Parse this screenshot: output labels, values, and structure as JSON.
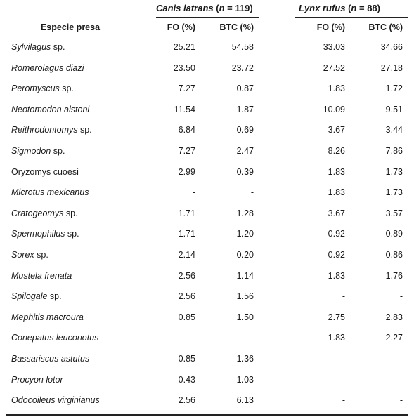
{
  "groups": {
    "canis": {
      "species": "Canis latrans",
      "n_open": " (",
      "n_var": "n",
      "n_eq": " = 119)"
    },
    "lynx": {
      "species": "Lynx rufus",
      "n_open": " (",
      "n_var": "n",
      "n_eq": " = 88)"
    }
  },
  "columns": {
    "species": "Especie presa",
    "canis_fo": "FO (%)",
    "canis_btc": "BTC (%)",
    "lynx_fo": "FO (%)",
    "lynx_btc": "BTC (%)"
  },
  "rows": [
    {
      "name": "Sylvilagus",
      "suffix": " sp.",
      "italic": true,
      "cfo": "25.21",
      "cbtc": "54.58",
      "lfo": "33.03",
      "lbtc": "34.66"
    },
    {
      "name": "Romerolagus diazi",
      "suffix": "",
      "italic": true,
      "cfo": "23.50",
      "cbtc": "23.72",
      "lfo": "27.52",
      "lbtc": "27.18"
    },
    {
      "name": "Peromyscus",
      "suffix": " sp.",
      "italic": true,
      "cfo": "7.27",
      "cbtc": "0.87",
      "lfo": "1.83",
      "lbtc": "1.72"
    },
    {
      "name": "Neotomodon alstoni",
      "suffix": "",
      "italic": true,
      "cfo": "11.54",
      "cbtc": "1.87",
      "lfo": "10.09",
      "lbtc": "9.51"
    },
    {
      "name": "Reithrodontomys",
      "suffix": " sp.",
      "italic": true,
      "cfo": "6.84",
      "cbtc": "0.69",
      "lfo": "3.67",
      "lbtc": "3.44"
    },
    {
      "name": "Sigmodon",
      "suffix": " sp.",
      "italic": true,
      "cfo": "7.27",
      "cbtc": "2.47",
      "lfo": "8.26",
      "lbtc": "7.86"
    },
    {
      "name": "Oryzomys cuoesi",
      "suffix": "",
      "italic": false,
      "cfo": "2.99",
      "cbtc": "0.39",
      "lfo": "1.83",
      "lbtc": "1.73"
    },
    {
      "name": "Microtus mexicanus",
      "suffix": "",
      "italic": true,
      "cfo": "-",
      "cbtc": "-",
      "lfo": "1.83",
      "lbtc": "1.73"
    },
    {
      "name": "Cratogeomys",
      "suffix": " sp.",
      "italic": true,
      "cfo": "1.71",
      "cbtc": "1.28",
      "lfo": "3.67",
      "lbtc": "3.57"
    },
    {
      "name": "Spermophilus",
      "suffix": " sp.",
      "italic": true,
      "cfo": "1.71",
      "cbtc": "1.20",
      "lfo": "0.92",
      "lbtc": "0.89"
    },
    {
      "name": "Sorex",
      "suffix": " sp.",
      "italic": true,
      "cfo": "2.14",
      "cbtc": "0.20",
      "lfo": "0.92",
      "lbtc": "0.86"
    },
    {
      "name": "Mustela frenata",
      "suffix": "",
      "italic": true,
      "cfo": "2.56",
      "cbtc": "1.14",
      "lfo": "1.83",
      "lbtc": "1.76"
    },
    {
      "name": "Spilogale",
      "suffix": " sp.",
      "italic": true,
      "cfo": "2.56",
      "cbtc": "1.56",
      "lfo": "-",
      "lbtc": "-"
    },
    {
      "name": "Mephitis macroura",
      "suffix": "",
      "italic": true,
      "cfo": "0.85",
      "cbtc": "1.50",
      "lfo": "2.75",
      "lbtc": "2.83"
    },
    {
      "name": "Conepatus leuconotus",
      "suffix": "",
      "italic": true,
      "cfo": "-",
      "cbtc": "-",
      "lfo": "1.83",
      "lbtc": "2.27"
    },
    {
      "name": "Bassariscus astutus",
      "suffix": "",
      "italic": true,
      "cfo": "0.85",
      "cbtc": "1.36",
      "lfo": "-",
      "lbtc": "-"
    },
    {
      "name": "Procyon lotor",
      "suffix": "",
      "italic": true,
      "cfo": "0.43",
      "cbtc": "1.03",
      "lfo": "-",
      "lbtc": "-"
    },
    {
      "name": "Odocoileus virginianus",
      "suffix": "",
      "italic": true,
      "cfo": "2.56",
      "cbtc": "6.13",
      "lfo": "-",
      "lbtc": "-"
    }
  ]
}
